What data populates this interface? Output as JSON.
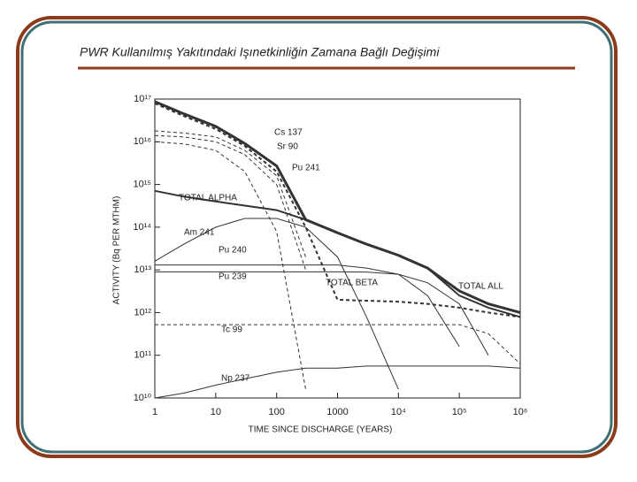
{
  "chart_data": {
    "type": "line",
    "title": "PWR Kullanılmış Yakıtındaki Işınetkinliğin Zamana Bağlı Değişimi",
    "xlabel": "TIME SINCE DISCHARGE (YEARS)",
    "ylabel": "ACTIVITY (Bq PER MTHM)",
    "xscale": "log",
    "yscale": "log",
    "xlim": [
      1,
      1000000
    ],
    "ylim": [
      10000000000,
      100000000000000000
    ],
    "xticks": [
      1,
      10,
      100,
      1000,
      {
        "value": 10000,
        "label": "10⁴"
      },
      {
        "value": 100000,
        "label": "10⁵"
      },
      {
        "value": 1000000,
        "label": "10⁶"
      }
    ],
    "yticks": [
      {
        "value": 10000000000,
        "label": "10¹⁰"
      },
      {
        "value": 100000000000,
        "label": "10¹¹"
      },
      {
        "value": 1000000000000,
        "label": "10¹²"
      },
      {
        "value": 10000000000000,
        "label": "10¹³"
      },
      {
        "value": 100000000000000,
        "label": "10¹⁴"
      },
      {
        "value": 1000000000000000,
        "label": "10¹⁵"
      },
      {
        "value": 10000000000000000,
        "label": "10¹⁶"
      },
      {
        "value": 100000000000000000,
        "label": "10¹⁷"
      }
    ],
    "x": [
      1,
      3,
      10,
      30,
      100,
      300,
      1000,
      3000,
      10000,
      30000,
      100000,
      300000,
      1000000
    ],
    "series": [
      {
        "name": "Cs 137",
        "color": "#333333",
        "dash": true,
        "width": 1,
        "values": [
          1.8e+16,
          1.6e+16,
          1.3e+16,
          6300000000000000.0,
          1600000000000000.0,
          20000000000000.0,
          null,
          null,
          null,
          null,
          null,
          null,
          null
        ]
      },
      {
        "name": "Sr 90",
        "color": "#333333",
        "dash": true,
        "width": 1,
        "values": [
          1.4e+16,
          1.3e+16,
          1e+16,
          5000000000000000.0,
          1000000000000000.0,
          10000000000000.0,
          null,
          null,
          null,
          null,
          null,
          null,
          null
        ]
      },
      {
        "name": "Pu 241",
        "color": "#333333",
        "dash": true,
        "width": 1,
        "values": [
          1e+16,
          8900000000000000.0,
          6300000000000000.0,
          2000000000000000.0,
          79000000000000.0,
          16000000000.0,
          null,
          null,
          null,
          null,
          null,
          null,
          null
        ]
      },
      {
        "name": "TOTAL ALPHA",
        "color": "#333333",
        "dash": false,
        "width": 2,
        "values": [
          710000000000000.0,
          520000000000000.0,
          400000000000000.0,
          320000000000000.0,
          250000000000000.0,
          150000000000000.0,
          74000000000000.0,
          40000000000000.0,
          22000000000000.0,
          11000000000000.0,
          2500000000000.0,
          1300000000000.0,
          790000000000.0
        ]
      },
      {
        "name": "Am 241",
        "color": "#333333",
        "dash": false,
        "width": 1,
        "values": [
          16000000000000.0,
          40000000000000.0,
          100000000000000.0,
          160000000000000.0,
          160000000000000.0,
          100000000000000.0,
          20000000000000.0,
          790000000000.0,
          16000000000.0,
          null,
          null,
          null,
          null
        ]
      },
      {
        "name": "Pu 240",
        "color": "#333333",
        "dash": false,
        "width": 1,
        "values": [
          13000000000000.0,
          13000000000000.0,
          13000000000000.0,
          13000000000000.0,
          13000000000000.0,
          13000000000000.0,
          13000000000000.0,
          11000000000000.0,
          7900000000000.0,
          2500000000000.0,
          160000000000.0,
          null,
          null
        ]
      },
      {
        "name": "Pu 239",
        "color": "#333333",
        "dash": false,
        "width": 1,
        "values": [
          9000000000000.0,
          9000000000000.0,
          9000000000000.0,
          9000000000000.0,
          9000000000000.0,
          9000000000000.0,
          9000000000000.0,
          8900000000000.0,
          7900000000000.0,
          5000000000000.0,
          1600000000000.0,
          100000000000.0,
          null
        ]
      },
      {
        "name": "TOTAL BETA",
        "color": "#333333",
        "dash": true,
        "width": 2,
        "values": [
          7.9e+16,
          4e+16,
          2e+16,
          7900000000000000.0,
          2000000000000000.0,
          100000000000000.0,
          2000000000000.0,
          1900000000000.0,
          1800000000000.0,
          1600000000000.0,
          1300000000000.0,
          1000000000000.0,
          790000000000.0
        ]
      },
      {
        "name": "TOTAL ALL",
        "color": "#333333",
        "dash": false,
        "width": 3,
        "values": [
          8.7e+16,
          4.5e+16,
          2.3e+16,
          9100000000000000.0,
          2700000000000000.0,
          150000000000000.0,
          74000000000000.0,
          40000000000000.0,
          22000000000000.0,
          11000000000000.0,
          3200000000000.0,
          1600000000000.0,
          1000000000000.0
        ]
      },
      {
        "name": "Tc 99",
        "color": "#333333",
        "dash": true,
        "width": 1,
        "values": [
          520000000000.0,
          520000000000.0,
          520000000000.0,
          520000000000.0,
          520000000000.0,
          520000000000.0,
          520000000000.0,
          520000000000.0,
          520000000000.0,
          520000000000.0,
          520000000000.0,
          320000000000.0,
          63000000000.0
        ]
      },
      {
        "name": "Np 237",
        "color": "#333333",
        "dash": false,
        "width": 1,
        "values": [
          10000000000.0,
          13000000000.0,
          20000000000.0,
          28000000000.0,
          40000000000.0,
          50000000000.0,
          50000000000.0,
          56000000000.0,
          56000000000.0,
          56000000000.0,
          56000000000.0,
          56000000000.0,
          50000000000.0
        ]
      }
    ]
  }
}
